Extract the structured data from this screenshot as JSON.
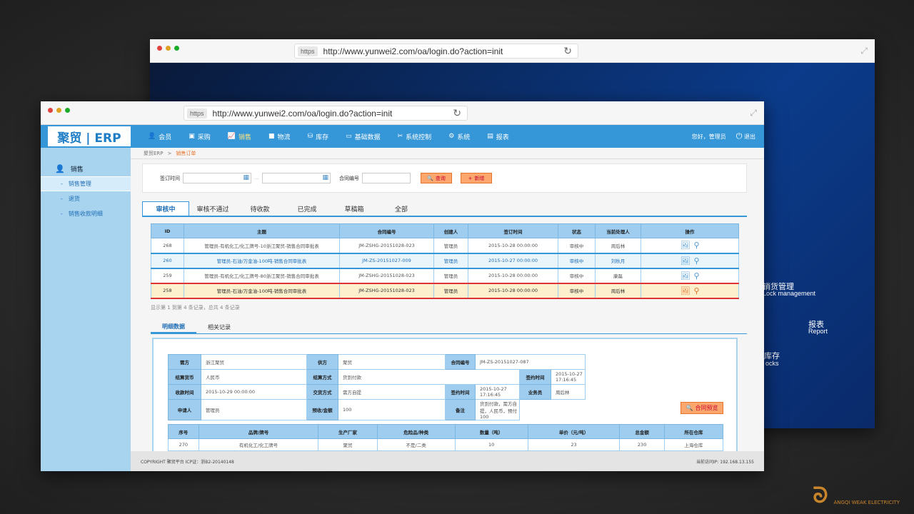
{
  "browser": {
    "https": "https",
    "url": "http://www.yunwei2.com/oa/login.do?action=init"
  },
  "back_content": {
    "t1": "销货管理",
    "t2": "Lock management",
    "t3": "报表",
    "t4": "Report",
    "t5": "库存",
    "t6": "ocks"
  },
  "nav": {
    "logo": "聚贸 | ERP",
    "items": [
      {
        "label": "会员",
        "icon": "user-icon"
      },
      {
        "label": "采购",
        "icon": "cart-icon"
      },
      {
        "label": "销售",
        "icon": "chart-icon"
      },
      {
        "label": "物流",
        "icon": "truck-icon"
      },
      {
        "label": "库存",
        "icon": "boxes-icon"
      },
      {
        "label": "基础数据",
        "icon": "monitor-icon"
      },
      {
        "label": "系统控制",
        "icon": "tools-icon"
      },
      {
        "label": "系统",
        "icon": "gear-icon"
      },
      {
        "label": "报表",
        "icon": "report-icon"
      }
    ],
    "greeting": "您好，管理员",
    "logout": "退出"
  },
  "sidebar": {
    "section": "销售",
    "items": [
      {
        "label": "销售管理"
      },
      {
        "label": "退货"
      },
      {
        "label": "销售收款明细"
      }
    ]
  },
  "breadcrumb": {
    "root": "聚贸ERP",
    "sep": ">",
    "current": "销售订单"
  },
  "filter": {
    "sign_time_label": "签订时间",
    "dash": "—",
    "contract_no_label": "合同编号",
    "search": "查询",
    "add": "新增"
  },
  "tabs": [
    "审核中",
    "审核不通过",
    "待收款",
    "已完成",
    "草稿箱",
    "全部"
  ],
  "table": {
    "headers": [
      "ID",
      "主题",
      "合同编号",
      "创建人",
      "签订时间",
      "状态",
      "当前处理人",
      "操作"
    ],
    "rows": [
      [
        "268",
        "管理员-有机化工/化工牌号-10浙江聚贸-销售合同审批表",
        "JM-ZSHG-20151028-023",
        "管理员",
        "2015-10-28 00:00:00",
        "审核中",
        "周后林"
      ],
      [
        "260",
        "管理员-石油/万金油-100吨-销售合同审批表",
        "JM-ZS-20151027-009",
        "管理员",
        "2015-10-27 00:00:00",
        "审核中",
        "刘秋月"
      ],
      [
        "259",
        "管理员-有机化工/化工牌号-80浙江聚贸-销售合同审批表",
        "JM-ZSHG-20151028-023",
        "管理员",
        "2015-10-28 00:00:00",
        "审核中",
        "康磊"
      ],
      [
        "258",
        "管理员-石油/万金油-100吨-销售合同审批表",
        "JM-ZSHG-20151028-023",
        "管理员",
        "2015-10-28 00:00:00",
        "审核中",
        "周后林"
      ]
    ]
  },
  "pager": "显示第 1 到第 4 条记录，总共 4 条记录",
  "subtabs": [
    "明细数据",
    "相关记录"
  ],
  "detail": {
    "buyer_k": "需方",
    "buyer": "浙江聚贸",
    "seller_k": "供方",
    "seller": "聚贸",
    "cno_k": "合同编号",
    "cno": "JM-ZS-20151027-087",
    "cur_k": "结算货币",
    "cur": "人民币",
    "pay_k": "结算方式",
    "pay": "货到付款",
    "sign_k": "签约时间",
    "sign": "2015-10-27 17:16:45",
    "recv_k": "收款时间",
    "recv": "2015-10-29 00:00:00",
    "deliv_k": "交货方式",
    "deliv": "需方自提",
    "sign2_k": "签约时间",
    "sign2": "2015-10-27 17:16:45",
    "sales_k": "业务员",
    "sales": "周后林",
    "app_k": "申请人",
    "app": "管理员",
    "pre_k": "预收/金额",
    "pre": "100",
    "note_k": "备注",
    "note": "货到付款，需方自提，人民币，预付100",
    "preview": "合同预览"
  },
  "items": {
    "headers": [
      "序号",
      "品牌/牌号",
      "生产厂家",
      "危险品/种类",
      "数量（吨）",
      "单价（元/吨）",
      "总金额",
      "所在仓库"
    ],
    "rows": [
      [
        "270",
        "有机化工/化工牌号",
        "聚贸",
        "不是/二类",
        "10",
        "23",
        "230",
        "上海仓库"
      ]
    ]
  },
  "footer": {
    "left": "COPYRIGHT 聚贸平台 ICP证：浙B2-20140148",
    "right": "当前访问IP: 192.168.13.155"
  },
  "watermark": {
    "name": "ANGQI WEAK ELECTRICITY"
  }
}
